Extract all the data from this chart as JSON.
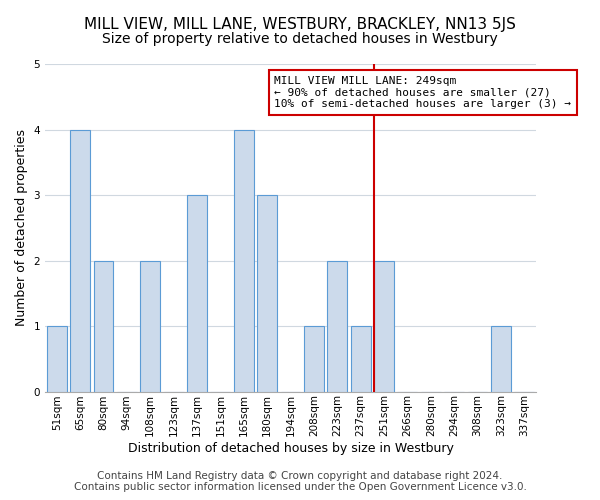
{
  "title": "MILL VIEW, MILL LANE, WESTBURY, BRACKLEY, NN13 5JS",
  "subtitle": "Size of property relative to detached houses in Westbury",
  "xlabel": "Distribution of detached houses by size in Westbury",
  "ylabel": "Number of detached properties",
  "bin_labels": [
    "51sqm",
    "65sqm",
    "80sqm",
    "94sqm",
    "108sqm",
    "123sqm",
    "137sqm",
    "151sqm",
    "165sqm",
    "180sqm",
    "194sqm",
    "208sqm",
    "223sqm",
    "237sqm",
    "251sqm",
    "266sqm",
    "280sqm",
    "294sqm",
    "308sqm",
    "323sqm",
    "337sqm"
  ],
  "bar_values": [
    1,
    4,
    2,
    0,
    2,
    0,
    3,
    0,
    4,
    3,
    0,
    1,
    2,
    1,
    2,
    0,
    0,
    0,
    0,
    1,
    0
  ],
  "bar_color": "#ccdaeb",
  "bar_edge_color": "#5b9bd5",
  "vline_x_index": 14,
  "vline_color": "#cc0000",
  "annotation_text": "MILL VIEW MILL LANE: 249sqm\n← 90% of detached houses are smaller (27)\n10% of semi-detached houses are larger (3) →",
  "annotation_box_color": "#ffffff",
  "annotation_box_edge_color": "#cc0000",
  "ylim": [
    0,
    5
  ],
  "yticks": [
    0,
    1,
    2,
    3,
    4,
    5
  ],
  "footer": "Contains HM Land Registry data © Crown copyright and database right 2024.\nContains public sector information licensed under the Open Government Licence v3.0.",
  "bg_color": "#ffffff",
  "plot_bg_color": "#ffffff",
  "title_fontsize": 11,
  "subtitle_fontsize": 10,
  "xlabel_fontsize": 9,
  "ylabel_fontsize": 9,
  "tick_fontsize": 7.5,
  "footer_fontsize": 7.5,
  "grid_color": "#d0d8e0"
}
